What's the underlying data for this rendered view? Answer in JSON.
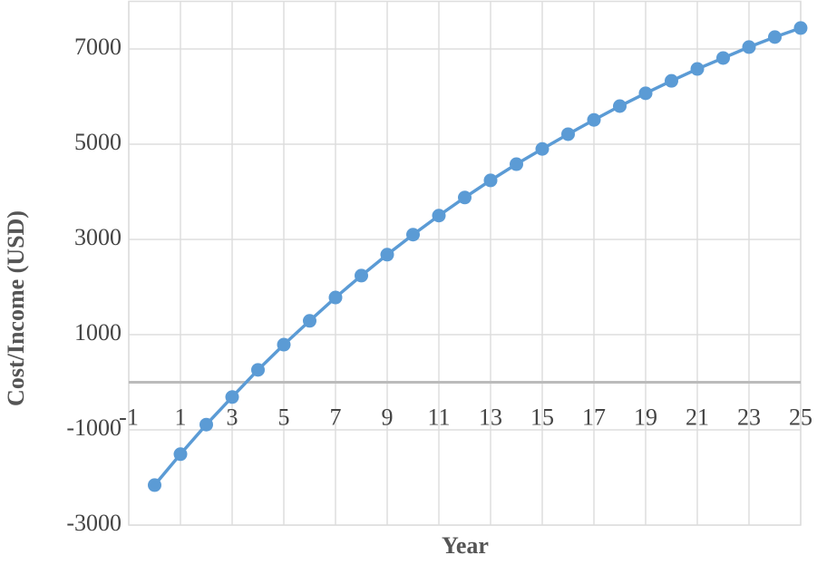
{
  "chart_data": {
    "type": "line",
    "x_label": "Year",
    "y_label": "Cost/Income (USD)",
    "x": [
      0,
      1,
      2,
      3,
      4,
      5,
      6,
      7,
      8,
      9,
      10,
      11,
      12,
      13,
      14,
      15,
      16,
      17,
      18,
      19,
      20,
      21,
      22,
      23,
      24,
      25
    ],
    "series": [
      {
        "name": "Cost/Income",
        "color": "#5b9bd5",
        "values": [
          -2160,
          -1510,
          -890,
          -310,
          260,
          790,
          1290,
          1780,
          2240,
          2680,
          3100,
          3500,
          3880,
          4240,
          4580,
          4900,
          5210,
          5510,
          5800,
          6070,
          6330,
          6580,
          6810,
          7040,
          7250,
          7440
        ]
      }
    ],
    "xlim": [
      -1,
      25
    ],
    "xticks": [
      -1,
      1,
      3,
      5,
      7,
      9,
      11,
      13,
      15,
      17,
      19,
      21,
      23,
      25
    ],
    "ylim": [
      -3000,
      8000
    ],
    "yticks": [
      -3000,
      -1000,
      1000,
      3000,
      5000,
      7000
    ],
    "grid": true
  }
}
